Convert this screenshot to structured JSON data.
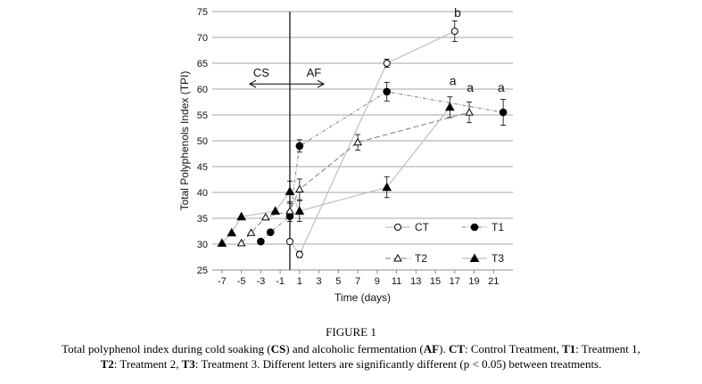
{
  "chart_data": {
    "type": "line",
    "xlabel": "Time (days)",
    "ylabel": "Total Polyphenols  Index (TPI)",
    "ylim": [
      25,
      75
    ],
    "yticks": [
      25,
      30,
      35,
      40,
      45,
      50,
      55,
      60,
      65,
      70,
      75
    ],
    "xlim": [
      -8,
      23
    ],
    "xticks": [
      -7,
      -5,
      -3,
      -1,
      1,
      3,
      5,
      7,
      9,
      11,
      13,
      15,
      17,
      19,
      21
    ],
    "grid": "horizontal",
    "phase_divider_x": 0,
    "phases": [
      {
        "label": "CS",
        "side": "left"
      },
      {
        "label": "AF",
        "side": "right"
      }
    ],
    "series": [
      {
        "name": "CT",
        "marker": "open-circle",
        "line": "solid-gray",
        "points": [
          {
            "x": 0,
            "y": 30.5,
            "err": null
          },
          {
            "x": 1,
            "y": 28.0,
            "err": 0.6
          },
          {
            "x": 10,
            "y": 65.0,
            "err": 0.8
          },
          {
            "x": 17,
            "y": 71.2,
            "err": 2.0
          }
        ]
      },
      {
        "name": "T1",
        "marker": "filled-circle",
        "line": "dash-dot",
        "points": [
          {
            "x": -3,
            "y": 30.5,
            "err": null
          },
          {
            "x": -2,
            "y": 32.3,
            "err": null
          },
          {
            "x": 0,
            "y": 35.4,
            "err": 1.0
          },
          {
            "x": 1,
            "y": 49.0,
            "err": 1.2
          },
          {
            "x": 10,
            "y": 59.5,
            "err": 1.8
          },
          {
            "x": 22,
            "y": 55.5,
            "err": 2.5
          }
        ]
      },
      {
        "name": "T2",
        "marker": "open-triangle",
        "line": "long-dash",
        "points": [
          {
            "x": -5,
            "y": 30.2,
            "err": null
          },
          {
            "x": -4,
            "y": 32.2,
            "err": null
          },
          {
            "x": -2.5,
            "y": 35.2,
            "err": null
          },
          {
            "x": 0,
            "y": 36.4,
            "err": 1.5
          },
          {
            "x": 1,
            "y": 40.6,
            "err": 2.0
          },
          {
            "x": 7,
            "y": 49.7,
            "err": 1.5
          },
          {
            "x": 18.5,
            "y": 55.5,
            "err": 2.0
          }
        ]
      },
      {
        "name": "T3",
        "marker": "filled-triangle",
        "line": "solid-gray",
        "points": [
          {
            "x": -7,
            "y": 30.2,
            "err": null
          },
          {
            "x": -6,
            "y": 32.2,
            "err": null
          },
          {
            "x": -5,
            "y": 35.3,
            "err": null
          },
          {
            "x": -1.5,
            "y": 36.4,
            "err": null
          },
          {
            "x": 0,
            "y": 40.2,
            "err": 2.0
          },
          {
            "x": 1,
            "y": 36.4,
            "err": 2.0
          },
          {
            "x": 10,
            "y": 41.0,
            "err": 2.0
          },
          {
            "x": 16.5,
            "y": 56.5,
            "err": 2.0
          }
        ]
      }
    ],
    "significance_labels": [
      {
        "text": "b",
        "x": 17.3,
        "y": 74.0
      },
      {
        "text": "a",
        "x": 16.8,
        "y": 60.8
      },
      {
        "text": "a",
        "x": 18.6,
        "y": 59.5
      },
      {
        "text": "a",
        "x": 21.8,
        "y": 59.5
      }
    ]
  },
  "caption": {
    "title": "FIGURE 1",
    "line1_part1": "Total polyphenol index during cold soaking (",
    "line1_cs": "CS",
    "line1_part2": ") and alcoholic fermentation (",
    "line1_af": "AF",
    "line1_part3": "). ",
    "line1_ct": "CT",
    "line1_part4": ": Control Treatment, ",
    "line1_t1": "T1",
    "line1_part5": ": Treatment 1,",
    "line2_t2": "T2",
    "line2_part1": ": Treatment 2, ",
    "line2_t3": "T3",
    "line2_part2": ": Treatment 3. Different letters are significantly different (p < 0.05) between treatments."
  }
}
